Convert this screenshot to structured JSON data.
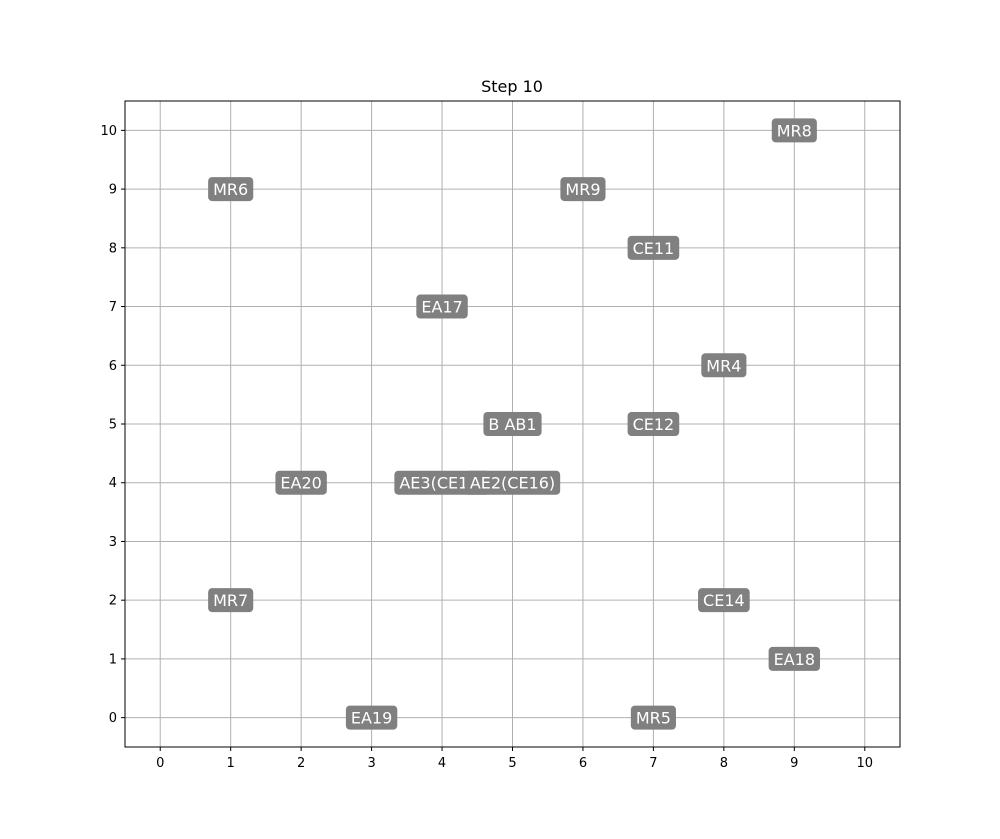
{
  "chart_data": {
    "type": "scatter",
    "title": "Step 10",
    "xlabel": "",
    "ylabel": "",
    "xlim": [
      -0.5,
      10.5
    ],
    "ylim": [
      -0.5,
      10.5
    ],
    "x_ticks": [
      0,
      1,
      2,
      3,
      4,
      5,
      6,
      7,
      8,
      9,
      10
    ],
    "y_ticks": [
      0,
      1,
      2,
      3,
      4,
      5,
      6,
      7,
      8,
      9,
      10
    ],
    "grid": true,
    "colors": {
      "label_box": "#808080",
      "label_text": "#ffffff",
      "grid": "#b0b0b0",
      "axes": "#000000"
    },
    "points": [
      {
        "label": "MR8",
        "x": 9,
        "y": 10
      },
      {
        "label": "MR6",
        "x": 1,
        "y": 9
      },
      {
        "label": "MR9",
        "x": 6,
        "y": 9
      },
      {
        "label": "CE11",
        "x": 7,
        "y": 8
      },
      {
        "label": "EA17",
        "x": 4,
        "y": 7
      },
      {
        "label": "MR4",
        "x": 8,
        "y": 6
      },
      {
        "label": "B AB1",
        "x": 5,
        "y": 5
      },
      {
        "label": "CE12",
        "x": 7,
        "y": 5
      },
      {
        "label": "EA20",
        "x": 2,
        "y": 4
      },
      {
        "label": "AE3(CE13)",
        "x": 4,
        "y": 4
      },
      {
        "label": "AE2(CE16)",
        "x": 5,
        "y": 4
      },
      {
        "label": "MR7",
        "x": 1,
        "y": 2
      },
      {
        "label": "CE14",
        "x": 8,
        "y": 2
      },
      {
        "label": "EA18",
        "x": 9,
        "y": 1
      },
      {
        "label": "EA19",
        "x": 3,
        "y": 0
      },
      {
        "label": "MR5",
        "x": 7,
        "y": 0
      }
    ]
  }
}
